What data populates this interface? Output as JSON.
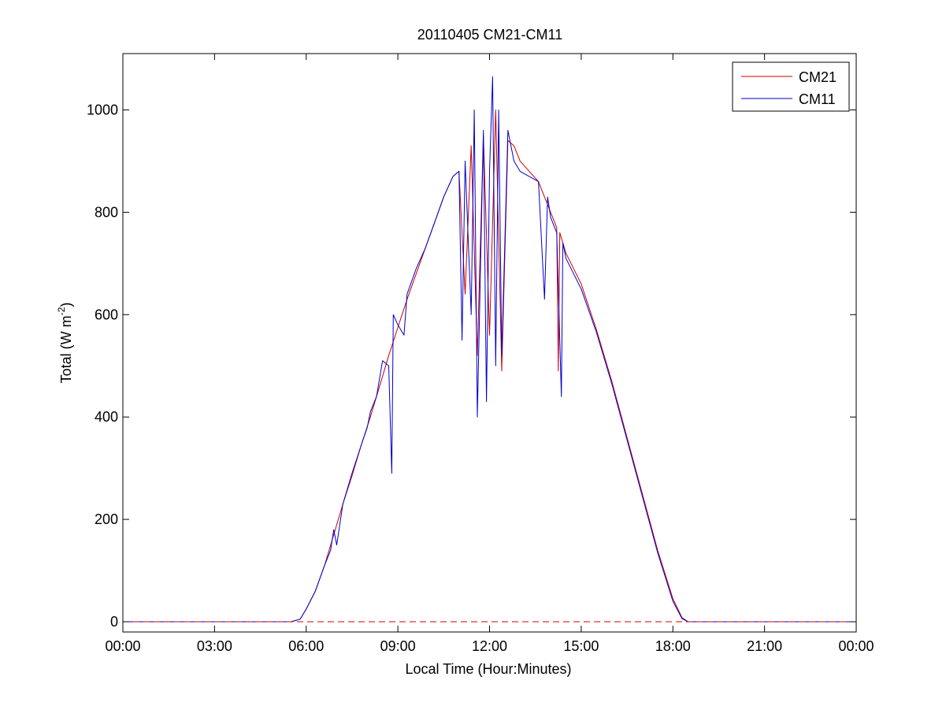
{
  "chart_data": {
    "type": "line",
    "title": "20110405 CM21-CM11",
    "xlabel": "Local Time (Hour:Minutes)",
    "ylabel_main": "Total (W m",
    "ylabel_sup": "-2",
    "ylabel_close": ")",
    "xlim": [
      0,
      24
    ],
    "ylim": [
      -20,
      1110
    ],
    "x_ticks": [
      0,
      3,
      6,
      9,
      12,
      15,
      18,
      21,
      24
    ],
    "x_tick_labels": [
      "00:00",
      "03:00",
      "06:00",
      "09:00",
      "12:00",
      "15:00",
      "18:00",
      "21:00",
      "00:00"
    ],
    "y_ticks": [
      0,
      200,
      400,
      600,
      800,
      1000
    ],
    "y_tick_labels": [
      "0",
      "200",
      "400",
      "600",
      "800",
      "1000"
    ],
    "grid": false,
    "legend_position": "top-right",
    "reference_line": {
      "y": 0,
      "color": "#cc0000",
      "style": "dashed"
    },
    "series": [
      {
        "name": "CM21",
        "color": "#cc0000",
        "points": [
          [
            0,
            0
          ],
          [
            5.5,
            0
          ],
          [
            5.8,
            5
          ],
          [
            6.0,
            25
          ],
          [
            6.3,
            60
          ],
          [
            6.6,
            110
          ],
          [
            6.9,
            170
          ],
          [
            7.2,
            230
          ],
          [
            7.5,
            285
          ],
          [
            7.8,
            345
          ],
          [
            8.1,
            400
          ],
          [
            8.4,
            460
          ],
          [
            8.7,
            520
          ],
          [
            9.0,
            575
          ],
          [
            9.3,
            630
          ],
          [
            9.6,
            680
          ],
          [
            9.9,
            730
          ],
          [
            10.2,
            780
          ],
          [
            10.5,
            830
          ],
          [
            10.8,
            870
          ],
          [
            11.0,
            880
          ],
          [
            11.2,
            640
          ],
          [
            11.4,
            930
          ],
          [
            11.6,
            520
          ],
          [
            11.8,
            950
          ],
          [
            12.0,
            560
          ],
          [
            12.2,
            1000
          ],
          [
            12.4,
            490
          ],
          [
            12.6,
            940
          ],
          [
            12.8,
            930
          ],
          [
            13.0,
            900
          ],
          [
            13.3,
            880
          ],
          [
            13.6,
            860
          ],
          [
            13.8,
            830
          ],
          [
            14.0,
            800
          ],
          [
            14.2,
            770
          ],
          [
            14.25,
            490
          ],
          [
            14.3,
            760
          ],
          [
            14.5,
            720
          ],
          [
            15.0,
            660
          ],
          [
            15.5,
            570
          ],
          [
            16.0,
            470
          ],
          [
            16.5,
            360
          ],
          [
            17.0,
            250
          ],
          [
            17.5,
            140
          ],
          [
            18.0,
            45
          ],
          [
            18.3,
            8
          ],
          [
            18.5,
            0
          ],
          [
            24,
            0
          ]
        ]
      },
      {
        "name": "CM11",
        "color": "#0000cc",
        "points": [
          [
            0,
            0
          ],
          [
            5.5,
            0
          ],
          [
            5.8,
            5
          ],
          [
            6.0,
            25
          ],
          [
            6.3,
            60
          ],
          [
            6.6,
            110
          ],
          [
            6.8,
            140
          ],
          [
            6.9,
            180
          ],
          [
            7.0,
            150
          ],
          [
            7.2,
            230
          ],
          [
            7.5,
            290
          ],
          [
            7.8,
            345
          ],
          [
            8.0,
            380
          ],
          [
            8.1,
            410
          ],
          [
            8.3,
            440
          ],
          [
            8.5,
            510
          ],
          [
            8.7,
            500
          ],
          [
            8.8,
            290
          ],
          [
            8.85,
            600
          ],
          [
            9.0,
            580
          ],
          [
            9.2,
            560
          ],
          [
            9.3,
            640
          ],
          [
            9.6,
            690
          ],
          [
            9.9,
            730
          ],
          [
            10.2,
            780
          ],
          [
            10.5,
            830
          ],
          [
            10.8,
            870
          ],
          [
            11.0,
            880
          ],
          [
            11.1,
            550
          ],
          [
            11.2,
            900
          ],
          [
            11.4,
            600
          ],
          [
            11.5,
            1000
          ],
          [
            11.6,
            400
          ],
          [
            11.8,
            960
          ],
          [
            11.9,
            430
          ],
          [
            12.0,
            880
          ],
          [
            12.1,
            1065
          ],
          [
            12.2,
            500
          ],
          [
            12.3,
            1000
          ],
          [
            12.4,
            520
          ],
          [
            12.6,
            960
          ],
          [
            12.8,
            900
          ],
          [
            13.0,
            880
          ],
          [
            13.3,
            870
          ],
          [
            13.6,
            860
          ],
          [
            13.8,
            630
          ],
          [
            13.9,
            830
          ],
          [
            14.0,
            790
          ],
          [
            14.2,
            760
          ],
          [
            14.35,
            440
          ],
          [
            14.4,
            740
          ],
          [
            14.5,
            710
          ],
          [
            15.0,
            650
          ],
          [
            15.5,
            565
          ],
          [
            16.0,
            465
          ],
          [
            16.5,
            355
          ],
          [
            17.0,
            245
          ],
          [
            17.5,
            135
          ],
          [
            18.0,
            40
          ],
          [
            18.3,
            6
          ],
          [
            18.5,
            0
          ],
          [
            24,
            0
          ]
        ]
      }
    ]
  }
}
